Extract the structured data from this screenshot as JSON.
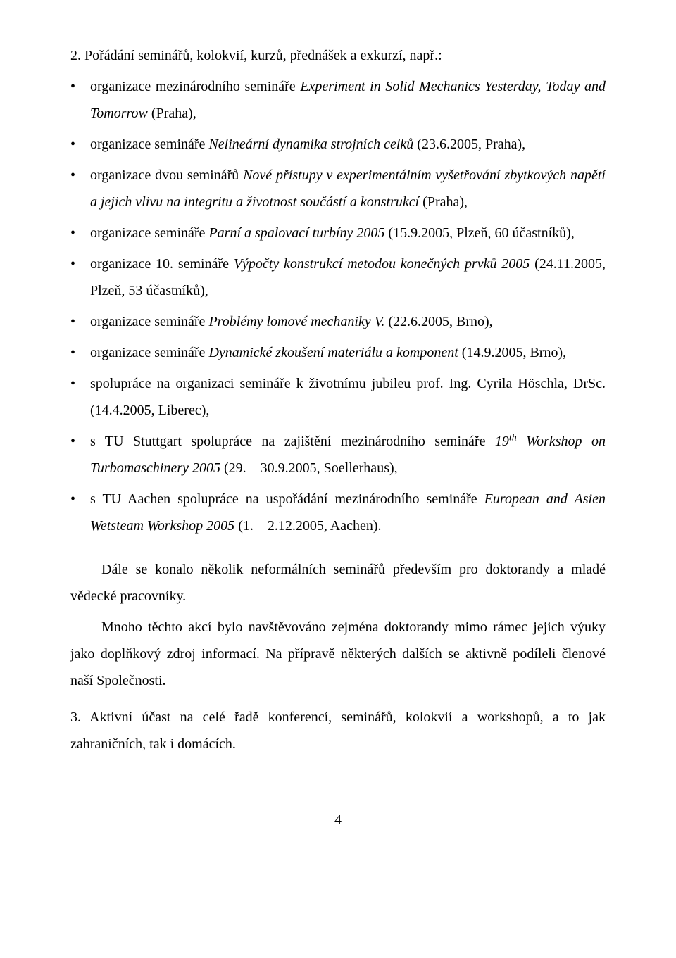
{
  "heading": "2. Pořádání seminářů, kolokvií, kurzů, přednášek a exkurzí, např.:",
  "bullets": [
    {
      "pre": "organizace mezinárodního semináře ",
      "em": "Experiment in Solid Mechanics Yesterday, Today and Tomorrow",
      "post": " (Praha),"
    },
    {
      "pre": "organizace semináře ",
      "em": "Nelineární dynamika strojních celků",
      "post": " (23.6.2005, Praha),"
    },
    {
      "pre": "organizace dvou seminářů ",
      "em": "Nové přístupy v experimentálním vyšetřování zbytkových napětí a jejich vlivu na integritu a životnost součástí a konstrukcí",
      "post": " (Praha),"
    },
    {
      "pre": "organizace semináře ",
      "em": "Parní a spalovací turbíny 2005",
      "post": " (15.9.2005, Plzeň, 60 účastníků),"
    },
    {
      "pre": "organizace 10. semináře ",
      "em": "Výpočty konstrukcí metodou konečných prvků 2005",
      "post": " (24.11.2005, Plzeň, 53 účastníků),"
    },
    {
      "pre": "organizace semináře ",
      "em": "Problémy lomové mechaniky V.",
      "post": " (22.6.2005, Brno),"
    },
    {
      "pre": "organizace semináře ",
      "em": "Dynamické zkoušení materiálu a komponent",
      "post": " (14.9.2005, Brno),"
    },
    {
      "pre": "spolupráce na organizaci semináře k životnímu jubileu prof. Ing. Cyrila Höschla, DrSc. (14.4.2005, Liberec),",
      "em": "",
      "post": ""
    },
    {
      "pre": "s TU Stuttgart spolupráce na zajištění mezinárodního semináře ",
      "em": "19",
      "sup": "th",
      "em2": " Workshop on Turbomaschinery 2005",
      "post": " (29. – 30.9.2005, Soellerhaus),"
    },
    {
      "pre": "s TU Aachen spolupráce na uspořádání mezinárodního semináře ",
      "em": "European and Asien Wetsteam Workshop 2005",
      "post": " (1. – 2.12.2005, Aachen)."
    }
  ],
  "para1": "Dále se konalo několik neformálních seminářů především pro doktorandy a mladé vědecké pracovníky.",
  "para2": "Mnoho těchto akcí bylo navštěvováno zejména doktorandy mimo rámec jejich výuky jako doplňkový zdroj informací. Na přípravě některých dalších se aktivně podíleli členové naší Společnosti.",
  "closing": "3. Aktivní účast na celé řadě konferencí, seminářů, kolokvií a workshopů, a to jak zahraničních, tak i domácích.",
  "pageNumber": "4"
}
